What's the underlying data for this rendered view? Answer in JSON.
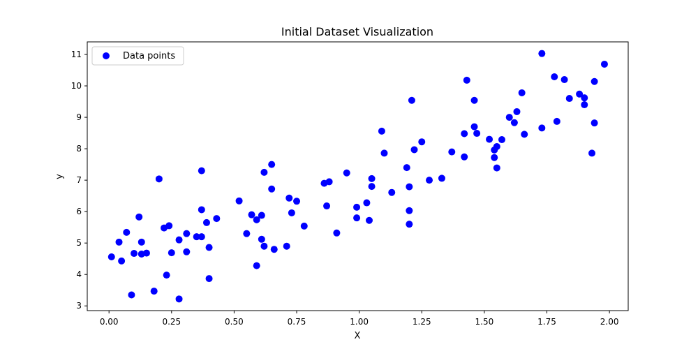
{
  "chart_data": {
    "type": "scatter",
    "title": "Initial Dataset Visualization",
    "xlabel": "X",
    "ylabel": "y",
    "xlim": [
      -0.087,
      2.075
    ],
    "ylim": [
      2.85,
      11.4
    ],
    "xticks": [
      0.0,
      0.25,
      0.5,
      0.75,
      1.0,
      1.25,
      1.5,
      1.75,
      2.0
    ],
    "xtick_labels": [
      "0.00",
      "0.25",
      "0.50",
      "0.75",
      "1.00",
      "1.25",
      "1.50",
      "1.75",
      "2.00"
    ],
    "yticks": [
      3,
      4,
      5,
      6,
      7,
      8,
      9,
      10,
      11
    ],
    "ytick_labels": [
      "3",
      "4",
      "5",
      "6",
      "7",
      "8",
      "9",
      "10",
      "11"
    ],
    "grid": false,
    "legend": "upper-left",
    "series": [
      {
        "name": "Data points",
        "color": "#0000ff",
        "points": [
          [
            0.01,
            4.56
          ],
          [
            0.04,
            5.03
          ],
          [
            0.05,
            4.43
          ],
          [
            0.07,
            5.34
          ],
          [
            0.09,
            3.35
          ],
          [
            0.1,
            4.67
          ],
          [
            0.12,
            5.83
          ],
          [
            0.13,
            5.03
          ],
          [
            0.13,
            4.65
          ],
          [
            0.15,
            4.68
          ],
          [
            0.18,
            3.47
          ],
          [
            0.2,
            7.04
          ],
          [
            0.22,
            5.48
          ],
          [
            0.23,
            3.98
          ],
          [
            0.24,
            5.55
          ],
          [
            0.25,
            4.69
          ],
          [
            0.28,
            5.1
          ],
          [
            0.28,
            3.22
          ],
          [
            0.31,
            5.3
          ],
          [
            0.31,
            4.72
          ],
          [
            0.35,
            5.2
          ],
          [
            0.37,
            5.2
          ],
          [
            0.37,
            6.06
          ],
          [
            0.37,
            7.3
          ],
          [
            0.39,
            5.65
          ],
          [
            0.4,
            4.86
          ],
          [
            0.4,
            3.87
          ],
          [
            0.43,
            5.78
          ],
          [
            0.52,
            6.34
          ],
          [
            0.55,
            5.3
          ],
          [
            0.57,
            5.9
          ],
          [
            0.59,
            4.28
          ],
          [
            0.59,
            5.74
          ],
          [
            0.61,
            5.12
          ],
          [
            0.61,
            5.88
          ],
          [
            0.62,
            4.9
          ],
          [
            0.62,
            7.25
          ],
          [
            0.65,
            7.5
          ],
          [
            0.65,
            6.72
          ],
          [
            0.66,
            4.8
          ],
          [
            0.71,
            4.9
          ],
          [
            0.72,
            6.43
          ],
          [
            0.73,
            5.96
          ],
          [
            0.75,
            6.33
          ],
          [
            0.78,
            5.54
          ],
          [
            0.86,
            6.9
          ],
          [
            0.87,
            6.18
          ],
          [
            0.88,
            6.95
          ],
          [
            0.91,
            5.32
          ],
          [
            0.95,
            7.23
          ],
          [
            0.99,
            6.14
          ],
          [
            0.99,
            5.8
          ],
          [
            1.03,
            6.28
          ],
          [
            1.04,
            5.72
          ],
          [
            1.05,
            7.05
          ],
          [
            1.05,
            6.8
          ],
          [
            1.09,
            8.56
          ],
          [
            1.1,
            7.86
          ],
          [
            1.13,
            6.61
          ],
          [
            1.19,
            7.4
          ],
          [
            1.2,
            6.03
          ],
          [
            1.2,
            5.6
          ],
          [
            1.2,
            6.79
          ],
          [
            1.21,
            9.54
          ],
          [
            1.22,
            7.97
          ],
          [
            1.25,
            8.22
          ],
          [
            1.28,
            7.0
          ],
          [
            1.33,
            7.06
          ],
          [
            1.37,
            7.9
          ],
          [
            1.42,
            8.48
          ],
          [
            1.42,
            7.74
          ],
          [
            1.43,
            10.18
          ],
          [
            1.46,
            9.54
          ],
          [
            1.46,
            8.7
          ],
          [
            1.47,
            8.49
          ],
          [
            1.52,
            8.3
          ],
          [
            1.54,
            7.96
          ],
          [
            1.54,
            7.72
          ],
          [
            1.55,
            8.07
          ],
          [
            1.55,
            7.39
          ],
          [
            1.57,
            8.29
          ],
          [
            1.6,
            9.0
          ],
          [
            1.62,
            8.83
          ],
          [
            1.63,
            9.18
          ],
          [
            1.65,
            9.78
          ],
          [
            1.66,
            8.46
          ],
          [
            1.73,
            11.03
          ],
          [
            1.73,
            8.66
          ],
          [
            1.78,
            10.29
          ],
          [
            1.79,
            8.87
          ],
          [
            1.82,
            10.2
          ],
          [
            1.84,
            9.6
          ],
          [
            1.88,
            9.74
          ],
          [
            1.9,
            9.62
          ],
          [
            1.9,
            9.4
          ],
          [
            1.93,
            7.86
          ],
          [
            1.94,
            8.82
          ],
          [
            1.94,
            10.14
          ],
          [
            1.98,
            10.69
          ]
        ]
      }
    ]
  }
}
